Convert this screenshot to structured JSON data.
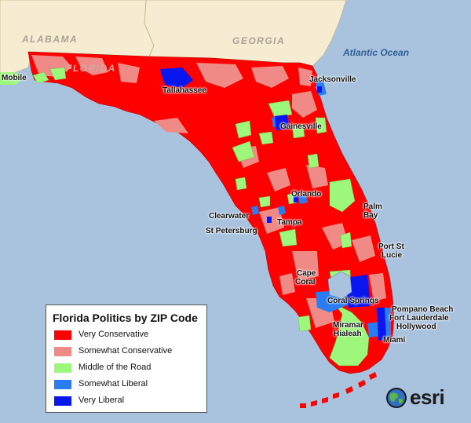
{
  "map": {
    "states": {
      "alabama": "ALABAMA",
      "georgia": "GEORGIA",
      "florida": "FLORIDA"
    },
    "ocean": "Atlantic Ocean",
    "cities": {
      "mobile": "Mobile",
      "tallahassee": "Tallahassee",
      "jacksonville": "Jacksonville",
      "gainesville": "Gainesville",
      "orlando": "Orlando",
      "palm_bay_1": "Palm",
      "palm_bay_2": "Bay",
      "clearwater": "Clearwater",
      "st_petersburg": "St Petersburg",
      "tampa": "Tampa",
      "port_st_lucie_1": "Port St",
      "port_st_lucie_2": "Lucie",
      "cape_coral_1": "Cape",
      "cape_coral_2": "Coral",
      "coral_springs": "Coral Springs",
      "pompano_beach": "Pompano Beach",
      "fort_lauderdale": "Fort Lauderdale",
      "hollywood": "Hollywood",
      "miramar": "Miramar",
      "hialeah": "Hialeah",
      "miami": "Miami"
    },
    "colors": {
      "water": "#a9c3df",
      "neighbor_land": "#f5ecd1",
      "very_conservative": "#ff0000",
      "somewhat_conservative": "#f08a86",
      "middle_of_the_road": "#9cf77a",
      "somewhat_liberal": "#2b7cf0",
      "very_liberal": "#0a16f0"
    }
  },
  "legend": {
    "title": "Florida Politics by ZIP Code",
    "items": [
      {
        "label": "Very Conservative",
        "color": "#ff0000"
      },
      {
        "label": "Somewhat Conservative",
        "color": "#f08a86"
      },
      {
        "label": "Middle of the Road",
        "color": "#9cf77a"
      },
      {
        "label": "Somewhat Liberal",
        "color": "#2b7cf0"
      },
      {
        "label": "Very Liberal",
        "color": "#0a16f0"
      }
    ]
  },
  "logo": {
    "text": "esri"
  }
}
